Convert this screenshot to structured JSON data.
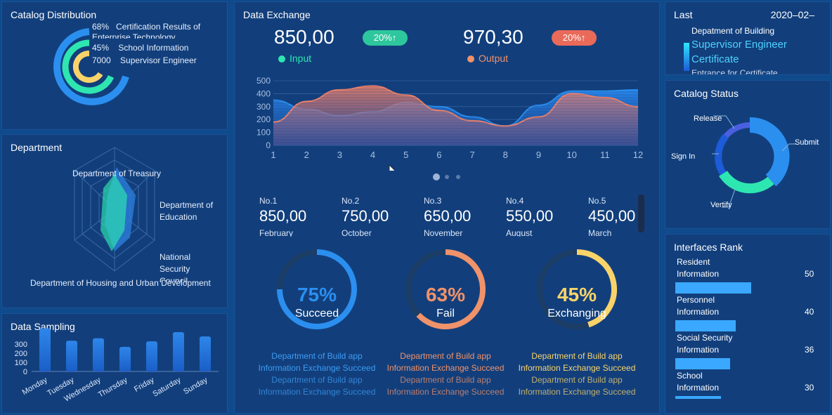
{
  "catalog_distribution": {
    "title": "Catalog Distribution",
    "items": [
      {
        "value": "68%",
        "label": "Certification Results of Enterprise Technology"
      },
      {
        "value": "45%",
        "label": "School Information"
      },
      {
        "value": "7000",
        "label": "Supervisor Engineer"
      }
    ]
  },
  "department": {
    "title": "Department",
    "labels": [
      "Department of Treasury",
      "Department of Education",
      "National Security Council",
      "Department of Housing and Urban Development"
    ]
  },
  "data_sampling": {
    "title": "Data Sampling",
    "chart_data": {
      "type": "bar",
      "categories": [
        "Monday",
        "Tuesday",
        "Wednesday",
        "Thursday",
        "Friday",
        "Saturday",
        "Sunday"
      ],
      "values": [
        350,
        250,
        270,
        200,
        245,
        320,
        285
      ],
      "ylim": [
        0,
        400
      ],
      "yticks": [
        "300",
        "200",
        "100",
        "0"
      ]
    }
  },
  "data_exchange": {
    "title": "Data Exchange",
    "input": {
      "value": "850,00",
      "badge": "20%↑",
      "label": "Input"
    },
    "output": {
      "value": "970,30",
      "badge": "20%↑",
      "label": "Output"
    },
    "chart_data": {
      "type": "area",
      "x": [
        1,
        2,
        3,
        4,
        5,
        6,
        7,
        8,
        9,
        10,
        11,
        12
      ],
      "series": [
        {
          "name": "Input",
          "values": [
            350,
            280,
            230,
            260,
            330,
            300,
            220,
            150,
            310,
            420,
            420,
            430
          ]
        },
        {
          "name": "Output",
          "values": [
            180,
            340,
            430,
            460,
            390,
            270,
            190,
            150,
            220,
            400,
            370,
            300
          ]
        }
      ],
      "ylim": [
        0,
        500
      ],
      "yticks": [
        "500",
        "400",
        "300",
        "200",
        "100",
        "0"
      ],
      "xticks": [
        "1",
        "2",
        "3",
        "4",
        "5",
        "6",
        "7",
        "8",
        "9",
        "10",
        "11",
        "12"
      ]
    },
    "ranks": [
      {
        "no": "No.1",
        "value": "850,00",
        "month": "February"
      },
      {
        "no": "No.2",
        "value": "750,00",
        "month": "October"
      },
      {
        "no": "No.3",
        "value": "650,00",
        "month": "November"
      },
      {
        "no": "No.4",
        "value": "550,00",
        "month": "August"
      },
      {
        "no": "No.5",
        "value": "450,00",
        "month": "March"
      }
    ],
    "gauges": [
      {
        "percent": "75%",
        "fraction": 0.75,
        "label": "Succeed",
        "color": "#2b8ff0"
      },
      {
        "percent": "63%",
        "fraction": 0.63,
        "label": "Fail",
        "color": "#f0926a"
      },
      {
        "percent": "45%",
        "fraction": 0.45,
        "label": "Exchanging",
        "color": "#f9d36a"
      }
    ],
    "logs": [
      {
        "color": "#3d9bf2",
        "lines": [
          "Department of Build app",
          "Information Exchange Succeed",
          "Department of Build app",
          "Information Exchange Succeed"
        ]
      },
      {
        "color": "#f0926a",
        "lines": [
          "Department of Build app",
          "Information Exchange Succeed",
          "Department of Build app",
          "Information Exchange Succeed"
        ]
      },
      {
        "color": "#f9d36a",
        "lines": [
          "Department of Build app",
          "Information Exchange Succeed",
          "Department of Build app",
          "Information Exchange Succeed"
        ]
      }
    ]
  },
  "last": {
    "title": "Last",
    "date": "2020–02–",
    "dept": "Depatment of Building",
    "highlight_1": "Supervisor Engineer",
    "highlight_2": "Certificate",
    "entrance": "Entrance for Certificate"
  },
  "catalog_status": {
    "title": "Catalog Status",
    "labels": {
      "release": "Release",
      "submit": "Submit",
      "sign_in": "Sign In",
      "vertify": "Vertify"
    }
  },
  "interfaces_rank": {
    "title": "Interfaces Rank",
    "items": [
      {
        "line1": "Resident",
        "line2": "Information",
        "value": "50",
        "fraction": 0.5
      },
      {
        "line1": "Personnel",
        "line2": "Information",
        "value": "40",
        "fraction": 0.4
      },
      {
        "line1": "Social Security",
        "line2": "Information",
        "value": "36",
        "fraction": 0.36
      },
      {
        "line1": "School",
        "line2": "Information",
        "value": "30",
        "fraction": 0.3
      }
    ]
  },
  "colors": {
    "accent_blue": "#2b8ff0",
    "accent_orange": "#f0926a",
    "accent_yellow": "#f9d36a",
    "accent_green": "#2ee6b0"
  }
}
